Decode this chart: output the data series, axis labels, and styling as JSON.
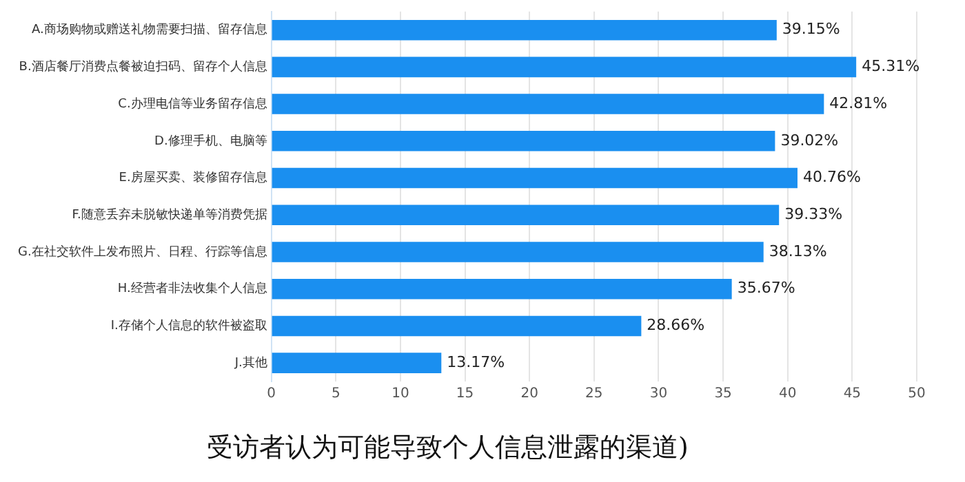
{
  "chart_data": {
    "type": "bar",
    "orientation": "horizontal",
    "categories": [
      "A.商场购物或赠送礼物需要扫描、留存信息",
      "B.酒店餐厅消费点餐被迫扫码、留存个人信息",
      "C.办理电信等业务留存信息",
      "D.修理手机、电脑等",
      "E.房屋买卖、装修留存信息",
      "F.随意丢弃未脱敏快递单等消费凭据",
      "G.在社交软件上发布照片、日程、行踪等信息",
      "H.经营者非法收集个人信息",
      "I.存储个人信息的软件被盗取",
      "J.其他"
    ],
    "values": [
      39.15,
      45.31,
      42.81,
      39.02,
      40.76,
      39.33,
      38.13,
      35.67,
      28.66,
      13.17
    ],
    "value_labels": [
      "39.15%",
      "45.31%",
      "42.81%",
      "39.02%",
      "40.76%",
      "39.33%",
      "38.13%",
      "35.67%",
      "28.66%",
      "13.17%"
    ],
    "color": "#1a8ff0",
    "xlim": [
      0,
      50
    ],
    "xticks": [
      0,
      5,
      10,
      15,
      20,
      25,
      30,
      35,
      40,
      45,
      50
    ],
    "grid": "x",
    "legend": false,
    "annotations": [
      "受访者认为可能导致个人信息泄露的渠道)"
    ]
  }
}
